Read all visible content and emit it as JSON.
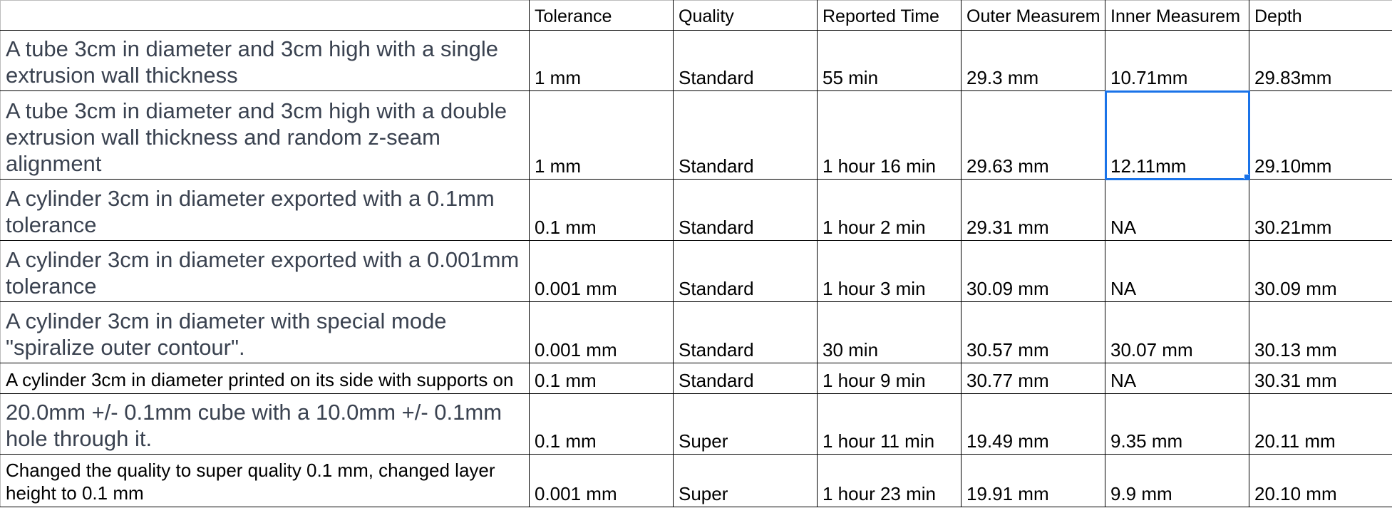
{
  "headers": [
    "",
    "Tolerance",
    "Quality",
    "Reported Time",
    "Outer Measurem",
    "Inner Measurem",
    "Depth"
  ],
  "rows": [
    {
      "desc": "A tube 3cm in diameter and 3cm high with a single extrusion wall thickness",
      "tolerance": "1 mm",
      "quality": "Standard",
      "time": "55 min",
      "outer": "29.3 mm",
      "inner": "10.71mm",
      "depth": "29.83mm"
    },
    {
      "desc": "A tube 3cm in diameter and 3cm high with a double extrusion wall thickness and random z-seam alignment",
      "tolerance": "1 mm",
      "quality": "Standard",
      "time": "1 hour 16 min",
      "outer": "29.63 mm",
      "inner": "12.11mm",
      "depth": "29.10mm"
    },
    {
      "desc": "A cylinder 3cm in diameter exported with a 0.1mm tolerance",
      "tolerance": "0.1 mm",
      "quality": "Standard",
      "time": "1 hour 2 min",
      "outer": "29.31 mm",
      "inner": "NA",
      "depth": "30.21mm"
    },
    {
      "desc": "A cylinder 3cm in diameter exported with a 0.001mm tolerance",
      "tolerance": "0.001 mm",
      "quality": "Standard",
      "time": "1 hour 3 min",
      "outer": "30.09 mm",
      "inner": "NA",
      "depth": "30.09 mm"
    },
    {
      "desc": "A cylinder 3cm in diameter with special mode \"spiralize outer contour\".",
      "tolerance": "0.001 mm",
      "quality": "Standard",
      "time": "30 min",
      "outer": "30.57 mm",
      "inner": "30.07 mm",
      "depth": "30.13 mm"
    },
    {
      "desc": "A cylinder 3cm in diameter printed on its side with supports on",
      "tolerance": "0.1 mm",
      "quality": "Standard",
      "time": "1 hour 9 min",
      "outer": "30.77 mm",
      "inner": "NA",
      "depth": "30.31 mm"
    },
    {
      "desc": "20.0mm +/- 0.1mm cube with a 10.0mm +/- 0.1mm hole through it.",
      "tolerance": "0.1 mm",
      "quality": "Super",
      "time": "1 hour 11 min",
      "outer": "19.49 mm",
      "inner": "9.35 mm",
      "depth": "20.11 mm"
    },
    {
      "desc": "Changed the quality to super quality 0.1 mm, changed layer height to 0.1 mm",
      "tolerance": "0.001 mm",
      "quality": "Super",
      "time": "1 hour 23 min",
      "outer": "19.91 mm",
      "inner": "9.9 mm",
      "depth": "20.10 mm"
    }
  ],
  "selected_cell": {
    "row": 1,
    "column": "inner"
  }
}
